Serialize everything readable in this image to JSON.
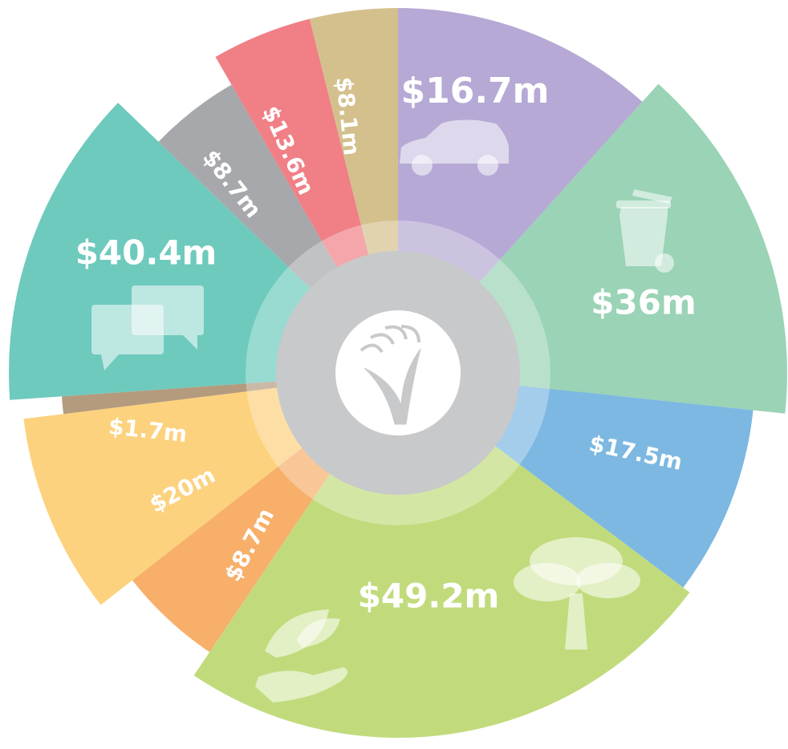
{
  "chart_data": {
    "type": "pie",
    "title": "",
    "segments": [
      {
        "label": "$16.7m",
        "value": 16.7,
        "color": "#B6A9D5",
        "icon": "car-icon"
      },
      {
        "label": "$36m",
        "value": 36,
        "color": "#9AD3B5",
        "icon": "wheelie-bin-icon"
      },
      {
        "label": "$17.5m",
        "value": 17.5,
        "color": "#7CB8E1",
        "icon": ""
      },
      {
        "label": "$49.2m",
        "value": 49.2,
        "color": "#C1DB7C",
        "icon": "tree-and-hand-leaf-icons"
      },
      {
        "label": "$8.7m",
        "value": 8.7,
        "color": "#F7AF6A",
        "icon": ""
      },
      {
        "label": "$20m",
        "value": 20,
        "color": "#FCD27E",
        "icon": ""
      },
      {
        "label": "$1.7m",
        "value": 1.7,
        "color": "#B49B7E",
        "icon": ""
      },
      {
        "label": "$40.4m",
        "value": 40.4,
        "color": "#6ECABD",
        "icon": "speech-bubbles-icon"
      },
      {
        "label": "$8.7m",
        "value": 8.7,
        "color": "#A7A8AB",
        "icon": ""
      },
      {
        "label": "$13.6m",
        "value": 13.6,
        "color": "#F08086",
        "icon": ""
      },
      {
        "label": "$8.1m",
        "value": 8.1,
        "color": "#D4C08D",
        "icon": ""
      }
    ],
    "center_icon": "plant-logo-icon",
    "center_color": "#C8C9CB"
  }
}
